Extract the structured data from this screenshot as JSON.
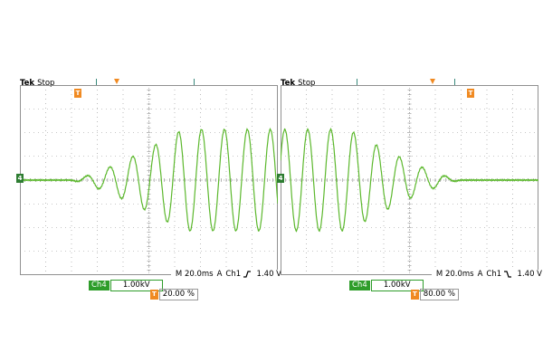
{
  "colors": {
    "trace": "#5cb82d",
    "grid": "#909090",
    "trigger": "#f08a22",
    "channel": "#2e9d2a"
  },
  "scopes": [
    {
      "brand": "Tek",
      "status": "Stop",
      "timebase": "M 20.0ms",
      "trigger_mode": "A",
      "trigger_source": "Ch1",
      "trigger_slope": "rising",
      "trigger_level": "1.40 V",
      "channel_label": "Ch4",
      "channel_scale": "1.00kV",
      "trigger_position": "20.00 %",
      "trace": {
        "envelope": "rising",
        "cycles": 10
      }
    },
    {
      "brand": "Tek",
      "status": "Stop",
      "timebase": "M 20.0ms",
      "trigger_mode": "A",
      "trigger_source": "Ch1",
      "trigger_slope": "falling",
      "trigger_level": "1.40 V",
      "channel_label": "Ch4",
      "channel_scale": "1.00kV",
      "trigger_position": "80.00 %",
      "trace": {
        "envelope": "falling",
        "cycles": 10
      }
    }
  ]
}
